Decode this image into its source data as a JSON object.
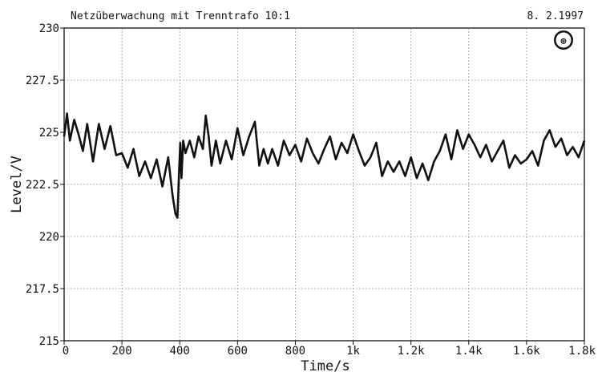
{
  "header": {
    "title": "Netzüberwachung mit Trenntrafo 10:1",
    "date": "8. 2.1997"
  },
  "logo": {
    "name": "rohde-schwarz-logo",
    "text": "R S"
  },
  "chart_data": {
    "type": "line",
    "title": "Netzüberwachung mit Trenntrafo 10:1",
    "xlabel": "Time/s",
    "ylabel": "Level/V",
    "xlim": [
      0,
      1800
    ],
    "ylim": [
      215,
      230
    ],
    "grid": true,
    "x_ticks": [
      {
        "value": 0,
        "label": "0"
      },
      {
        "value": 200,
        "label": "200"
      },
      {
        "value": 400,
        "label": "400"
      },
      {
        "value": 600,
        "label": "600"
      },
      {
        "value": 800,
        "label": "800"
      },
      {
        "value": 1000,
        "label": "1k"
      },
      {
        "value": 1200,
        "label": "1.2k"
      },
      {
        "value": 1400,
        "label": "1.4k"
      },
      {
        "value": 1600,
        "label": "1.6k"
      },
      {
        "value": 1800,
        "label": "1.8k"
      }
    ],
    "y_ticks": [
      {
        "value": 230,
        "label": "230"
      },
      {
        "value": 227.5,
        "label": "227.5"
      },
      {
        "value": 225,
        "label": "225"
      },
      {
        "value": 222.5,
        "label": "222.5"
      },
      {
        "value": 220,
        "label": "220"
      },
      {
        "value": 217.5,
        "label": "217.5"
      },
      {
        "value": 215,
        "label": "215"
      }
    ],
    "series": [
      {
        "x": [
          0,
          10,
          20,
          35,
          50,
          65,
          80,
          100,
          120,
          140,
          160,
          180,
          200,
          220,
          240,
          260,
          280,
          300,
          320,
          340,
          360,
          375,
          385,
          392,
          398,
          402,
          406,
          412,
          420,
          435,
          450,
          465,
          480,
          490,
          500,
          510,
          525,
          540,
          560,
          580,
          600,
          620,
          640,
          660,
          675,
          690,
          705,
          720,
          740,
          760,
          780,
          800,
          820,
          840,
          860,
          880,
          900,
          920,
          940,
          960,
          980,
          1000,
          1020,
          1040,
          1060,
          1080,
          1100,
          1120,
          1140,
          1160,
          1180,
          1200,
          1220,
          1240,
          1260,
          1280,
          1300,
          1320,
          1340,
          1360,
          1380,
          1400,
          1420,
          1440,
          1460,
          1480,
          1500,
          1520,
          1540,
          1560,
          1580,
          1600,
          1620,
          1640,
          1660,
          1680,
          1700,
          1720,
          1740,
          1760,
          1780,
          1800
        ],
        "y": [
          224.8,
          225.9,
          224.6,
          225.6,
          224.9,
          224.1,
          225.4,
          223.6,
          225.4,
          224.2,
          225.3,
          223.9,
          224.0,
          223.3,
          224.2,
          222.9,
          223.6,
          222.8,
          223.7,
          222.4,
          223.8,
          222.0,
          221.1,
          220.9,
          223.2,
          224.5,
          222.8,
          224.6,
          224.0,
          224.6,
          223.8,
          224.8,
          224.2,
          225.8,
          224.8,
          223.4,
          224.6,
          223.5,
          224.6,
          223.7,
          225.2,
          223.9,
          224.8,
          225.5,
          223.4,
          224.2,
          223.5,
          224.2,
          223.4,
          224.6,
          223.9,
          224.4,
          223.6,
          224.7,
          224.0,
          223.5,
          224.2,
          224.8,
          223.7,
          224.5,
          224.0,
          224.9,
          224.1,
          223.4,
          223.8,
          224.5,
          222.9,
          223.6,
          223.1,
          223.6,
          222.9,
          223.8,
          222.8,
          223.5,
          222.7,
          223.6,
          224.1,
          224.9,
          223.7,
          225.1,
          224.2,
          224.9,
          224.4,
          223.8,
          224.4,
          223.6,
          224.1,
          224.6,
          223.3,
          223.9,
          223.5,
          223.7,
          224.1,
          223.4,
          224.6,
          225.1,
          224.3,
          224.7,
          223.9,
          224.3,
          223.8,
          224.6
        ]
      }
    ]
  }
}
